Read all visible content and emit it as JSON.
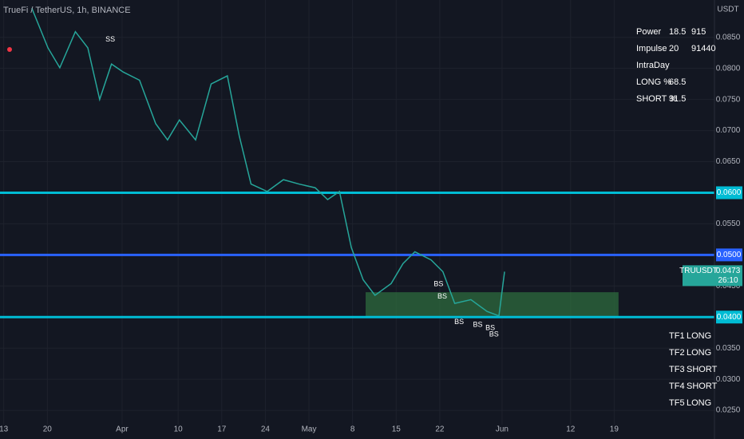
{
  "chart_data": {
    "type": "line",
    "title": "TrueFi / TetherUS, 1h, BINANCE",
    "y_unit": "USDT",
    "x": [
      4.5,
      7.1,
      9.0,
      11.5,
      13.5,
      15.4,
      17.3,
      19.2,
      21.8,
      24.4,
      26.3,
      28.2,
      30.8,
      33.3,
      35.9,
      37.8,
      39.7,
      42.3,
      44.9,
      47.4,
      50.0,
      52.0,
      53.9,
      55.8,
      57.7,
      59.6,
      62.2,
      64.1,
      66.0,
      68.6,
      70.5,
      72.4,
      75.0,
      77.6,
      79.5,
      80.4
    ],
    "series": [
      {
        "name": "TRUUSDT",
        "color": "#26a69a",
        "values": [
          0.0897,
          0.0833,
          0.0801,
          0.0859,
          0.0833,
          0.075,
          0.0807,
          0.0794,
          0.0781,
          0.0711,
          0.0685,
          0.0717,
          0.0685,
          0.0775,
          0.0788,
          0.0692,
          0.0614,
          0.0602,
          0.0621,
          0.0614,
          0.0608,
          0.0589,
          0.0602,
          0.0512,
          0.046,
          0.0435,
          0.0454,
          0.0486,
          0.0505,
          0.0492,
          0.0473,
          0.0422,
          0.0428,
          0.0409,
          0.0402,
          0.0473
        ]
      }
    ],
    "countdown": "26:10",
    "xlim": [
      -0.6,
      114.1
    ],
    "xticks": [
      {
        "value": 0,
        "label": "13"
      },
      {
        "value": 7,
        "label": "20"
      },
      {
        "value": 19,
        "label": "Apr"
      },
      {
        "value": 28,
        "label": "10"
      },
      {
        "value": 35,
        "label": "17"
      },
      {
        "value": 42,
        "label": "24"
      },
      {
        "value": 49,
        "label": "May"
      },
      {
        "value": 56,
        "label": "8"
      },
      {
        "value": 63,
        "label": "15"
      },
      {
        "value": 70,
        "label": "22"
      },
      {
        "value": 80,
        "label": "Jun"
      },
      {
        "value": 91,
        "label": "12"
      },
      {
        "value": 98,
        "label": "19"
      }
    ],
    "ylim": [
      0.0227,
      0.091
    ],
    "yticks": [
      {
        "value": 0.025,
        "label": "0.0250"
      },
      {
        "value": 0.03,
        "label": "0.0300"
      },
      {
        "value": 0.035,
        "label": "0.0350"
      },
      {
        "value": 0.04,
        "label": "0.0400"
      },
      {
        "value": 0.045,
        "label": "0.0450"
      },
      {
        "value": 0.05,
        "label": "0.0500"
      },
      {
        "value": 0.055,
        "label": "0.0550"
      },
      {
        "value": 0.06,
        "label": "0.0600"
      },
      {
        "value": 0.065,
        "label": "0.0650"
      },
      {
        "value": 0.07,
        "label": "0.0700"
      },
      {
        "value": 0.075,
        "label": "0.0750"
      },
      {
        "value": 0.08,
        "label": "0.0800"
      },
      {
        "value": 0.085,
        "label": "0.0850"
      }
    ],
    "grid": true,
    "levels": [
      {
        "value": 0.06,
        "label": "0.0600",
        "color": "#00bcd4"
      },
      {
        "value": 0.05,
        "label": "0.0500",
        "color": "#2962ff"
      },
      {
        "value": 0.04,
        "label": "0.0400",
        "color": "#00bcd4"
      }
    ],
    "zone": {
      "x": [
        58.1,
        98.7
      ],
      "y": [
        0.04,
        0.044
      ],
      "color": "#2e6b3e"
    },
    "annotations": [
      {
        "text": "SS",
        "x": 17.1,
        "y": 0.0846
      },
      {
        "text": "BS",
        "x": 69.8,
        "y": 0.0453
      },
      {
        "text": "BS",
        "x": 70.4,
        "y": 0.0433
      },
      {
        "text": "BS",
        "x": 73.1,
        "y": 0.0392
      },
      {
        "text": "BS",
        "x": 76.1,
        "y": 0.0387
      },
      {
        "text": "BS",
        "x": 78.1,
        "y": 0.0382
      },
      {
        "text": "BS",
        "x": 78.7,
        "y": 0.0372
      }
    ]
  },
  "stats": [
    [
      "Power",
      18.5,
      915
    ],
    [
      "Impulse",
      20,
      91440
    ],
    [
      "IntraDay"
    ],
    [
      "LONG %",
      68.5
    ],
    [
      "SHORT %",
      31.5
    ]
  ],
  "timeframes": [
    [
      "TF1",
      "LONG"
    ],
    [
      "TF2",
      "LONG"
    ],
    [
      "TF3",
      "SHORT"
    ],
    [
      "TF4",
      "SHORT"
    ],
    [
      "TF5",
      "LONG"
    ]
  ]
}
